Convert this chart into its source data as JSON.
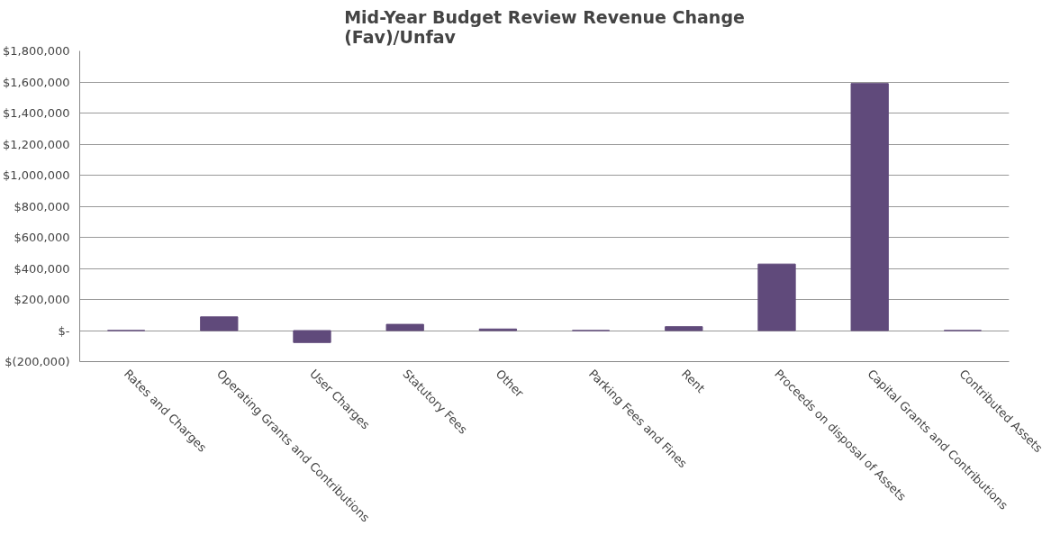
{
  "chart_data": {
    "type": "bar",
    "title": "Mid-Year Budget Review Revenue Change\n(Fav)/Unfav",
    "categories": [
      "Rates and Charges",
      "Operating Grants and Contributions",
      "User Charges",
      "Statutory Fees",
      "Other",
      "Parking Fees and Fines",
      "Rent",
      "Proceeds on disposal of Assets",
      "Capital Grants and Contributions",
      "Contributed Assets"
    ],
    "values": [
      0,
      88000,
      -77000,
      40000,
      10000,
      0,
      25000,
      428000,
      1590000,
      0
    ],
    "color": "#604a7b",
    "ylim": [
      -200000,
      1800000
    ],
    "yticks": [
      {
        "value": -200000,
        "label": "$(200,000)"
      },
      {
        "value": 0,
        "label": "$-"
      },
      {
        "value": 200000,
        "label": "$200,000"
      },
      {
        "value": 400000,
        "label": "$400,000"
      },
      {
        "value": 600000,
        "label": "$600,000"
      },
      {
        "value": 800000,
        "label": "$800,000"
      },
      {
        "value": 1000000,
        "label": "$1,000,000"
      },
      {
        "value": 1200000,
        "label": "$1,200,000"
      },
      {
        "value": 1400000,
        "label": "$1,400,000"
      },
      {
        "value": 1600000,
        "label": "$1,600,000"
      },
      {
        "value": 1800000,
        "label": "$1,800,000"
      }
    ],
    "grid": "y"
  }
}
